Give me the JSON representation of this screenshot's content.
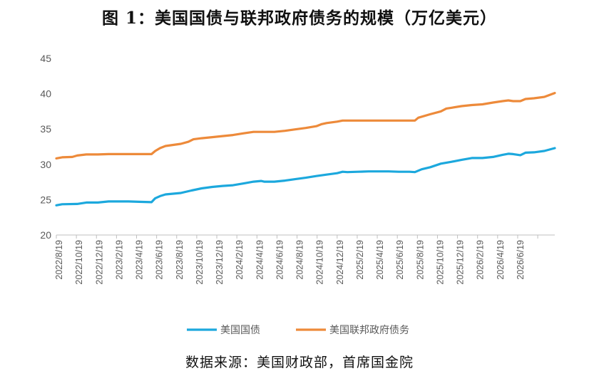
{
  "title": "图 1：美国国债与联邦政府债务的规模（万亿美元）",
  "source": "数据来源：美国财政部，首席国金院",
  "colors": {
    "series1": "#1CA8DD",
    "series2": "#ED8A3A",
    "axis": "#BFBFBF",
    "text": "#595959"
  },
  "chart_data": {
    "type": "line",
    "ylim": [
      20,
      45
    ],
    "yticks": [
      20,
      25,
      30,
      35,
      40,
      45
    ],
    "xlim": [
      "2022-08-19",
      "2026-08-19"
    ],
    "x_tick_labels": [
      "2022/8/19",
      "2022/10/19",
      "2022/12/19",
      "2023/2/19",
      "2023/4/19",
      "2023/6/19",
      "2023/8/19",
      "2023/10/19",
      "2023/12/19",
      "2024/2/19",
      "2024/4/19",
      "2024/6/19",
      "2024/8/19",
      "2024/10/19",
      "2024/12/19",
      "2025/2/19",
      "2025/4/19",
      "2025/6/19",
      "2025/8/19",
      "2025/10/19",
      "2025/12/19",
      "2026/2/19",
      "2026/4/19",
      "2026/6/19"
    ],
    "grid": false,
    "legend_position": "bottom",
    "series": [
      {
        "name": "美国国债",
        "color": "#1CA8DD",
        "points": [
          [
            "2022-08-19",
            24.2
          ],
          [
            "2022-09-05",
            24.35
          ],
          [
            "2022-10-19",
            24.4
          ],
          [
            "2022-11-15",
            24.6
          ],
          [
            "2022-12-19",
            24.6
          ],
          [
            "2023-01-19",
            24.75
          ],
          [
            "2023-02-19",
            24.75
          ],
          [
            "2023-03-19",
            24.75
          ],
          [
            "2023-04-19",
            24.7
          ],
          [
            "2023-05-25",
            24.65
          ],
          [
            "2023-06-05",
            25.2
          ],
          [
            "2023-06-19",
            25.5
          ],
          [
            "2023-07-05",
            25.75
          ],
          [
            "2023-08-19",
            25.95
          ],
          [
            "2023-09-19",
            26.3
          ],
          [
            "2023-10-19",
            26.6
          ],
          [
            "2023-11-19",
            26.8
          ],
          [
            "2023-12-19",
            26.95
          ],
          [
            "2024-01-19",
            27.05
          ],
          [
            "2024-02-19",
            27.3
          ],
          [
            "2024-03-19",
            27.55
          ],
          [
            "2024-04-10",
            27.65
          ],
          [
            "2024-04-19",
            27.55
          ],
          [
            "2024-05-19",
            27.55
          ],
          [
            "2024-06-19",
            27.7
          ],
          [
            "2024-07-19",
            27.9
          ],
          [
            "2024-08-19",
            28.1
          ],
          [
            "2024-09-19",
            28.35
          ],
          [
            "2024-10-19",
            28.55
          ],
          [
            "2024-11-19",
            28.75
          ],
          [
            "2024-12-05",
            28.95
          ],
          [
            "2024-12-19",
            28.9
          ],
          [
            "2025-01-19",
            28.95
          ],
          [
            "2025-02-19",
            29.0
          ],
          [
            "2025-03-19",
            29.0
          ],
          [
            "2025-04-19",
            29.0
          ],
          [
            "2025-05-19",
            28.95
          ],
          [
            "2025-06-19",
            28.95
          ],
          [
            "2025-07-05",
            28.9
          ],
          [
            "2025-07-25",
            29.3
          ],
          [
            "2025-08-19",
            29.6
          ],
          [
            "2025-09-19",
            30.1
          ],
          [
            "2025-10-19",
            30.35
          ],
          [
            "2025-11-19",
            30.65
          ],
          [
            "2025-12-19",
            30.9
          ],
          [
            "2026-01-19",
            30.9
          ],
          [
            "2026-02-19",
            31.05
          ],
          [
            "2026-03-19",
            31.35
          ],
          [
            "2026-04-05",
            31.5
          ],
          [
            "2026-04-19",
            31.45
          ],
          [
            "2026-05-10",
            31.3
          ],
          [
            "2026-05-25",
            31.65
          ],
          [
            "2026-06-19",
            31.7
          ],
          [
            "2026-07-19",
            31.9
          ],
          [
            "2026-08-19",
            32.3
          ]
        ]
      },
      {
        "name": "美国联邦政府债务",
        "color": "#ED8A3A",
        "points": [
          [
            "2022-08-19",
            30.85
          ],
          [
            "2022-09-05",
            31.0
          ],
          [
            "2022-10-05",
            31.05
          ],
          [
            "2022-10-19",
            31.25
          ],
          [
            "2022-11-15",
            31.4
          ],
          [
            "2022-12-19",
            31.4
          ],
          [
            "2023-01-19",
            31.45
          ],
          [
            "2023-02-19",
            31.45
          ],
          [
            "2023-03-19",
            31.45
          ],
          [
            "2023-04-19",
            31.45
          ],
          [
            "2023-05-25",
            31.45
          ],
          [
            "2023-06-05",
            31.9
          ],
          [
            "2023-06-19",
            32.3
          ],
          [
            "2023-07-05",
            32.6
          ],
          [
            "2023-08-19",
            32.9
          ],
          [
            "2023-09-10",
            33.2
          ],
          [
            "2023-09-25",
            33.55
          ],
          [
            "2023-10-19",
            33.7
          ],
          [
            "2023-11-19",
            33.85
          ],
          [
            "2023-12-19",
            34.0
          ],
          [
            "2024-01-19",
            34.15
          ],
          [
            "2024-02-19",
            34.4
          ],
          [
            "2024-03-19",
            34.6
          ],
          [
            "2024-04-19",
            34.6
          ],
          [
            "2024-05-19",
            34.6
          ],
          [
            "2024-06-19",
            34.75
          ],
          [
            "2024-07-19",
            34.95
          ],
          [
            "2024-08-19",
            35.15
          ],
          [
            "2024-09-19",
            35.4
          ],
          [
            "2024-10-05",
            35.7
          ],
          [
            "2024-10-19",
            35.85
          ],
          [
            "2024-11-19",
            36.05
          ],
          [
            "2024-12-05",
            36.2
          ],
          [
            "2024-12-19",
            36.2
          ],
          [
            "2025-01-19",
            36.2
          ],
          [
            "2025-02-19",
            36.2
          ],
          [
            "2025-03-19",
            36.2
          ],
          [
            "2025-04-19",
            36.2
          ],
          [
            "2025-05-19",
            36.2
          ],
          [
            "2025-06-19",
            36.2
          ],
          [
            "2025-07-05",
            36.2
          ],
          [
            "2025-07-15",
            36.6
          ],
          [
            "2025-08-19",
            37.1
          ],
          [
            "2025-09-19",
            37.5
          ],
          [
            "2025-10-05",
            37.9
          ],
          [
            "2025-10-19",
            38.0
          ],
          [
            "2025-11-19",
            38.25
          ],
          [
            "2025-12-19",
            38.4
          ],
          [
            "2026-01-19",
            38.5
          ],
          [
            "2026-02-19",
            38.75
          ],
          [
            "2026-03-19",
            38.95
          ],
          [
            "2026-04-05",
            39.05
          ],
          [
            "2026-04-19",
            38.95
          ],
          [
            "2026-05-10",
            38.95
          ],
          [
            "2026-05-25",
            39.25
          ],
          [
            "2026-06-19",
            39.35
          ],
          [
            "2026-07-19",
            39.55
          ],
          [
            "2026-08-19",
            40.1
          ]
        ]
      }
    ]
  }
}
